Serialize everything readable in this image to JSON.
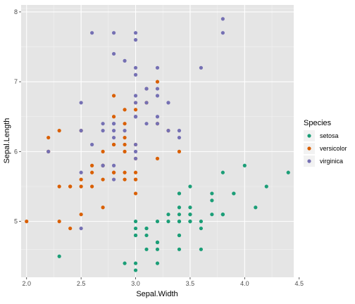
{
  "chart_data": {
    "type": "scatter",
    "xlabel": "Sepal.Width",
    "ylabel": "Sepal.Length",
    "xlim": [
      1.95,
      4.45
    ],
    "ylim": [
      4.2,
      8.1
    ],
    "x_ticks": [
      "2.0",
      "2.5",
      "3.0",
      "3.5",
      "4.0",
      "4.5"
    ],
    "y_ticks": [
      "5",
      "6",
      "7",
      "8"
    ],
    "grid": true,
    "background": "#e5e5e5",
    "legend": {
      "title": "Species",
      "position": "right"
    },
    "series": [
      {
        "name": "setosa",
        "color": "#1b9e77",
        "points": [
          [
            3.5,
            5.1
          ],
          [
            3.0,
            4.9
          ],
          [
            3.2,
            4.7
          ],
          [
            3.1,
            4.6
          ],
          [
            3.6,
            5.0
          ],
          [
            3.9,
            5.4
          ],
          [
            3.4,
            4.6
          ],
          [
            3.4,
            5.0
          ],
          [
            2.9,
            4.4
          ],
          [
            3.1,
            4.9
          ],
          [
            3.7,
            5.4
          ],
          [
            3.4,
            4.8
          ],
          [
            3.0,
            4.8
          ],
          [
            3.0,
            4.3
          ],
          [
            4.0,
            5.8
          ],
          [
            4.4,
            5.7
          ],
          [
            3.9,
            5.4
          ],
          [
            3.5,
            5.1
          ],
          [
            3.8,
            5.7
          ],
          [
            3.8,
            5.1
          ],
          [
            3.4,
            5.4
          ],
          [
            3.7,
            5.1
          ],
          [
            3.6,
            4.6
          ],
          [
            3.3,
            5.1
          ],
          [
            3.4,
            4.8
          ],
          [
            3.0,
            5.0
          ],
          [
            3.4,
            5.0
          ],
          [
            3.5,
            5.2
          ],
          [
            3.4,
            5.2
          ],
          [
            3.2,
            4.7
          ],
          [
            3.1,
            4.8
          ],
          [
            3.4,
            5.4
          ],
          [
            4.1,
            5.2
          ],
          [
            4.2,
            5.5
          ],
          [
            3.1,
            4.9
          ],
          [
            3.2,
            5.0
          ],
          [
            3.5,
            5.5
          ],
          [
            3.6,
            4.9
          ],
          [
            3.0,
            4.4
          ],
          [
            3.4,
            5.1
          ],
          [
            3.5,
            5.0
          ],
          [
            2.3,
            4.5
          ],
          [
            3.2,
            4.4
          ],
          [
            3.5,
            5.0
          ],
          [
            3.8,
            5.1
          ],
          [
            3.0,
            4.8
          ],
          [
            3.8,
            5.1
          ],
          [
            3.2,
            4.6
          ],
          [
            3.7,
            5.3
          ],
          [
            3.3,
            5.0
          ]
        ]
      },
      {
        "name": "versicolor",
        "color": "#d95f02",
        "points": [
          [
            3.2,
            7.0
          ],
          [
            3.2,
            6.4
          ],
          [
            3.1,
            6.9
          ],
          [
            2.3,
            5.5
          ],
          [
            2.8,
            6.5
          ],
          [
            2.8,
            5.7
          ],
          [
            3.3,
            6.3
          ],
          [
            2.4,
            4.9
          ],
          [
            2.9,
            6.6
          ],
          [
            2.7,
            5.2
          ],
          [
            2.0,
            5.0
          ],
          [
            3.0,
            5.9
          ],
          [
            2.2,
            6.0
          ],
          [
            2.9,
            6.1
          ],
          [
            2.9,
            5.6
          ],
          [
            3.1,
            6.7
          ],
          [
            3.0,
            5.6
          ],
          [
            2.7,
            5.8
          ],
          [
            2.2,
            6.2
          ],
          [
            2.5,
            5.6
          ],
          [
            3.2,
            5.9
          ],
          [
            2.8,
            6.1
          ],
          [
            2.5,
            6.3
          ],
          [
            2.8,
            6.1
          ],
          [
            2.9,
            6.4
          ],
          [
            3.0,
            6.6
          ],
          [
            2.8,
            6.8
          ],
          [
            3.0,
            6.7
          ],
          [
            2.9,
            6.0
          ],
          [
            2.6,
            5.7
          ],
          [
            2.4,
            5.5
          ],
          [
            2.4,
            5.5
          ],
          [
            2.7,
            5.8
          ],
          [
            2.7,
            6.0
          ],
          [
            3.0,
            5.4
          ],
          [
            3.4,
            6.0
          ],
          [
            3.1,
            6.7
          ],
          [
            2.3,
            6.3
          ],
          [
            3.0,
            5.6
          ],
          [
            2.5,
            5.5
          ],
          [
            2.6,
            5.5
          ],
          [
            3.0,
            6.1
          ],
          [
            2.6,
            5.8
          ],
          [
            2.3,
            5.0
          ],
          [
            2.7,
            5.6
          ],
          [
            3.0,
            5.7
          ],
          [
            2.9,
            5.7
          ],
          [
            2.9,
            6.2
          ],
          [
            2.5,
            5.1
          ],
          [
            2.8,
            5.7
          ]
        ]
      },
      {
        "name": "virginica",
        "color": "#7570b3",
        "points": [
          [
            3.3,
            6.3
          ],
          [
            2.7,
            5.8
          ],
          [
            3.0,
            7.1
          ],
          [
            2.9,
            6.3
          ],
          [
            3.0,
            6.5
          ],
          [
            3.0,
            7.6
          ],
          [
            2.5,
            4.9
          ],
          [
            2.9,
            7.3
          ],
          [
            2.5,
            6.7
          ],
          [
            3.6,
            7.2
          ],
          [
            3.2,
            6.5
          ],
          [
            2.7,
            6.4
          ],
          [
            3.0,
            6.8
          ],
          [
            2.5,
            5.7
          ],
          [
            2.8,
            5.8
          ],
          [
            3.2,
            6.4
          ],
          [
            3.0,
            6.5
          ],
          [
            3.8,
            7.7
          ],
          [
            2.6,
            7.7
          ],
          [
            2.2,
            6.0
          ],
          [
            3.2,
            6.9
          ],
          [
            2.8,
            5.6
          ],
          [
            2.8,
            7.7
          ],
          [
            2.7,
            6.3
          ],
          [
            3.3,
            6.7
          ],
          [
            3.2,
            7.2
          ],
          [
            2.8,
            6.2
          ],
          [
            3.0,
            6.1
          ],
          [
            2.8,
            6.4
          ],
          [
            3.0,
            7.2
          ],
          [
            2.8,
            7.4
          ],
          [
            3.8,
            7.9
          ],
          [
            2.8,
            6.4
          ],
          [
            2.8,
            6.3
          ],
          [
            2.6,
            6.1
          ],
          [
            3.0,
            7.7
          ],
          [
            3.4,
            6.3
          ],
          [
            3.1,
            6.4
          ],
          [
            3.0,
            6.0
          ],
          [
            3.1,
            6.9
          ],
          [
            3.1,
            6.7
          ],
          [
            3.1,
            6.9
          ],
          [
            2.7,
            5.8
          ],
          [
            3.2,
            6.8
          ],
          [
            3.3,
            6.7
          ],
          [
            3.0,
            6.7
          ],
          [
            2.5,
            6.3
          ],
          [
            3.0,
            6.5
          ],
          [
            3.4,
            6.2
          ],
          [
            3.0,
            5.9
          ]
        ]
      }
    ]
  }
}
